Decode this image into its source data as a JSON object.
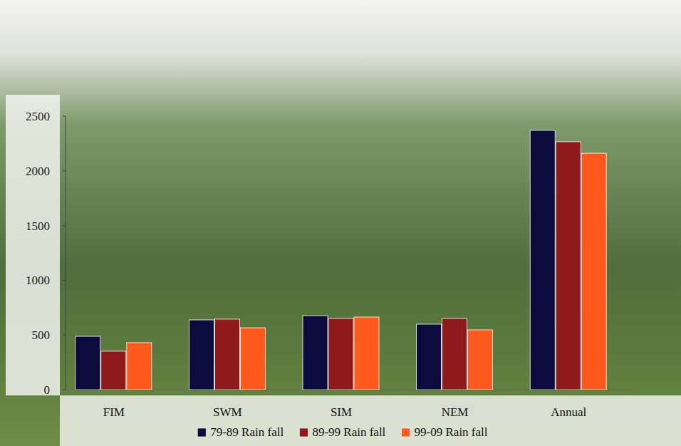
{
  "chart_data": {
    "type": "bar",
    "categories": [
      "FIM",
      "SWM",
      "SIM",
      "NEM",
      "Annual"
    ],
    "series": [
      {
        "name": "79-89 Rain fall",
        "color": "#0c0b3e",
        "values": [
          488,
          638,
          677,
          599,
          2370
        ]
      },
      {
        "name": "89-99 Rain fall",
        "color": "#8e1a1c",
        "values": [
          352,
          645,
          651,
          651,
          2266
        ]
      },
      {
        "name": "99-09 Rain fall",
        "color": "#ff5a1e",
        "values": [
          430,
          566,
          664,
          547,
          2161
        ]
      }
    ],
    "ylim": [
      0,
      2500
    ],
    "yticks": [
      0,
      500,
      1000,
      1500,
      2000,
      2500
    ],
    "grid": false,
    "legend": "bottom"
  }
}
